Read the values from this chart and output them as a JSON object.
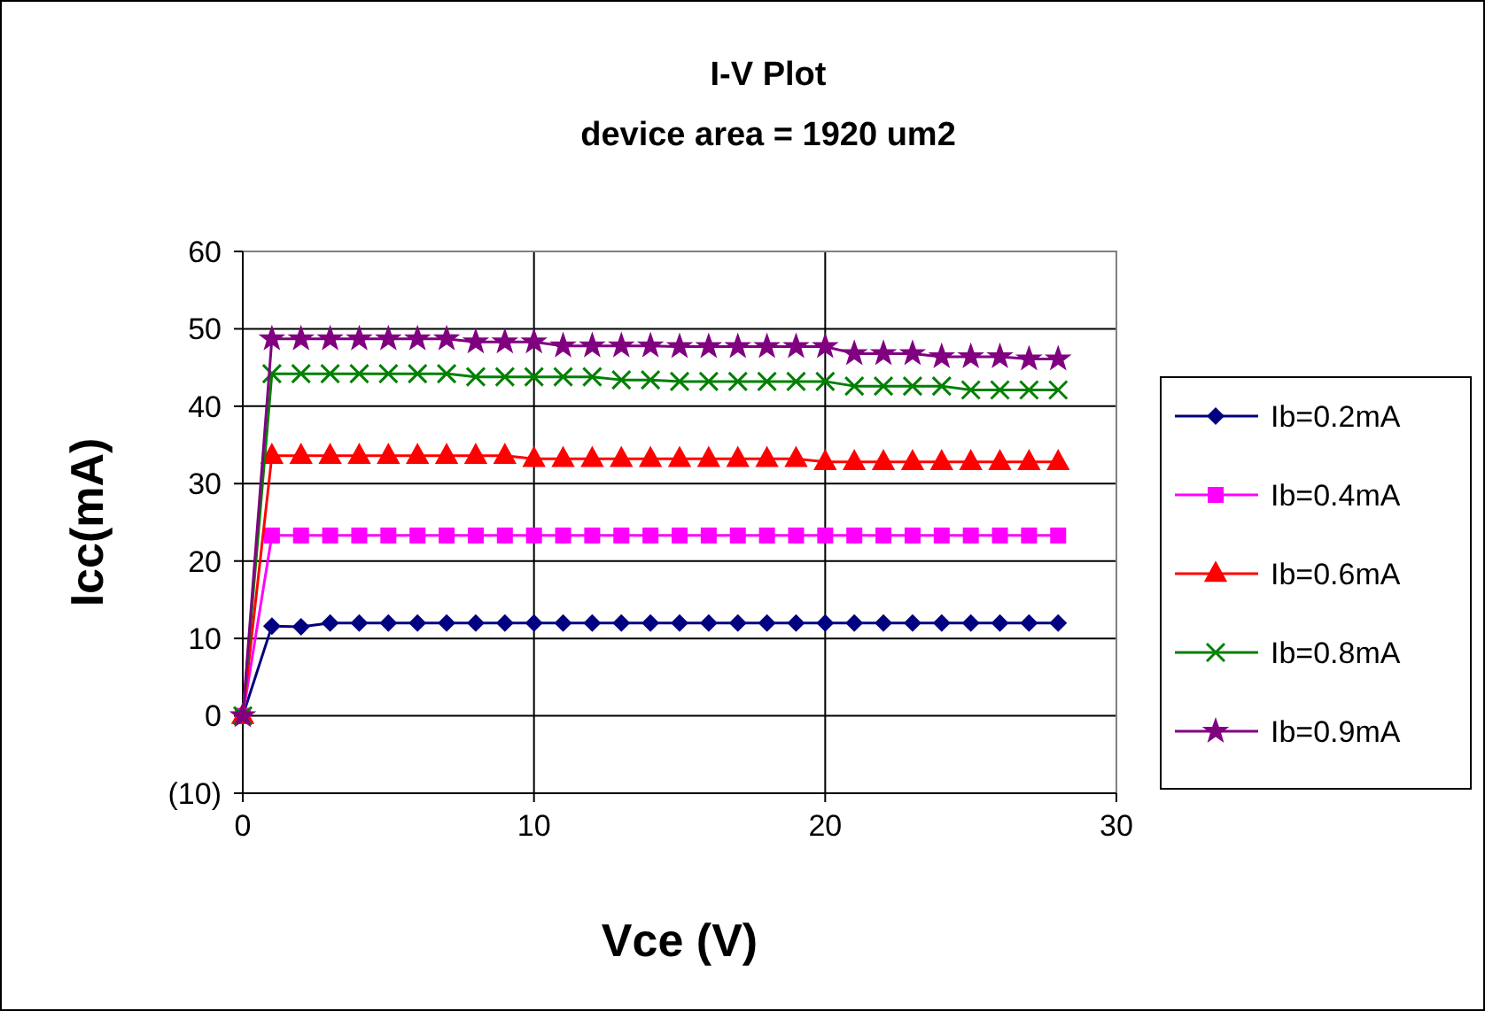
{
  "chart_data": {
    "type": "line",
    "title": "I-V Plot",
    "subtitle": "device area = 1920 um2",
    "xlabel": "Vce (V)",
    "ylabel": "Icc(mA)",
    "x": [
      0,
      1,
      2,
      3,
      4,
      5,
      6,
      7,
      8,
      9,
      10,
      11,
      12,
      13,
      14,
      15,
      16,
      17,
      18,
      19,
      20,
      21,
      22,
      23,
      24,
      25,
      26,
      27,
      28
    ],
    "xlim": [
      0,
      30
    ],
    "xticks": [
      0,
      10,
      20,
      30
    ],
    "ylim": [
      -10,
      60
    ],
    "yticks": [
      {
        "value": -10,
        "label": "(10)"
      },
      0,
      10,
      20,
      30,
      40,
      50,
      60
    ],
    "grid": true,
    "legend": "right",
    "series": [
      {
        "name": "Ib=0.2mA",
        "color": "#000080",
        "marker": "diamond",
        "values": [
          0,
          11.6,
          11.5,
          12,
          12,
          12,
          12,
          12,
          12,
          12,
          12,
          12,
          12,
          12,
          12,
          12,
          12,
          12,
          12,
          12,
          12,
          12,
          12,
          12,
          12,
          12,
          12,
          12,
          12
        ]
      },
      {
        "name": "Ib=0.4mA",
        "color": "#ff00ff",
        "marker": "square",
        "values": [
          0,
          23.3,
          23.3,
          23.3,
          23.3,
          23.3,
          23.3,
          23.3,
          23.3,
          23.3,
          23.3,
          23.3,
          23.3,
          23.3,
          23.3,
          23.3,
          23.3,
          23.3,
          23.3,
          23.3,
          23.3,
          23.3,
          23.3,
          23.3,
          23.3,
          23.3,
          23.3,
          23.3,
          23.3
        ]
      },
      {
        "name": "Ib=0.6mA",
        "color": "#ff0000",
        "marker": "triangle",
        "values": [
          0,
          33.6,
          33.6,
          33.6,
          33.6,
          33.6,
          33.6,
          33.6,
          33.6,
          33.6,
          33.2,
          33.2,
          33.2,
          33.2,
          33.2,
          33.2,
          33.2,
          33.2,
          33.2,
          33.2,
          32.8,
          32.8,
          32.8,
          32.8,
          32.8,
          32.8,
          32.8,
          32.8,
          32.8
        ]
      },
      {
        "name": "Ib=0.8mA",
        "color": "#008000",
        "marker": "cross",
        "values": [
          0,
          44.2,
          44.2,
          44.2,
          44.2,
          44.2,
          44.2,
          44.2,
          43.8,
          43.8,
          43.8,
          43.8,
          43.8,
          43.4,
          43.4,
          43.2,
          43.2,
          43.2,
          43.2,
          43.2,
          43.2,
          42.6,
          42.6,
          42.6,
          42.6,
          42.1,
          42.1,
          42.1,
          42.1
        ]
      },
      {
        "name": "Ib=0.9mA",
        "color": "#800080",
        "marker": "star",
        "values": [
          0,
          48.7,
          48.7,
          48.7,
          48.7,
          48.7,
          48.7,
          48.7,
          48.3,
          48.3,
          48.3,
          47.8,
          47.8,
          47.8,
          47.8,
          47.7,
          47.7,
          47.7,
          47.7,
          47.7,
          47.7,
          46.8,
          46.8,
          46.8,
          46.4,
          46.4,
          46.4,
          46.1,
          46.1
        ]
      }
    ]
  }
}
